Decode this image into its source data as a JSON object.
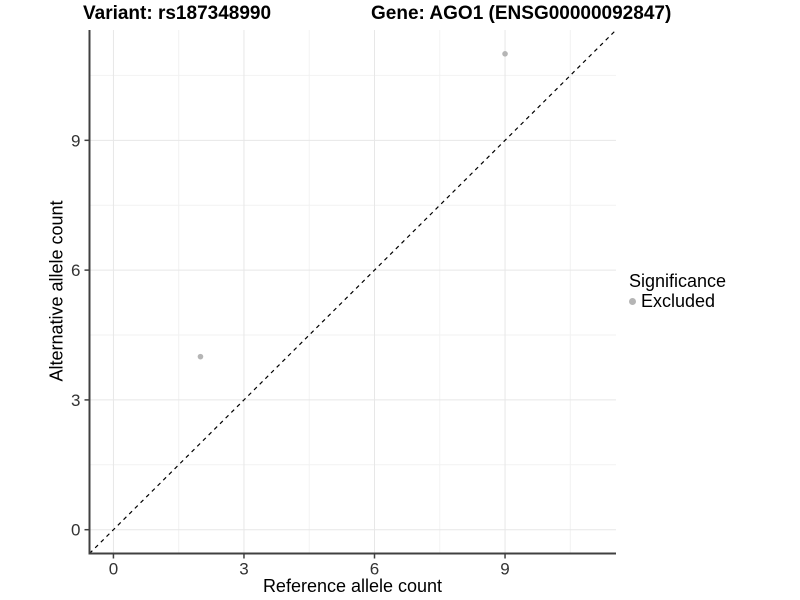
{
  "chart_data": {
    "type": "scatter",
    "title_left": "Variant: rs187348990",
    "title_right": "Gene: AGO1 (ENSG00000092847)",
    "xlabel": "Reference allele count",
    "ylabel": "Alternative allele count",
    "xlim": [
      -0.55,
      11.55
    ],
    "ylim": [
      -0.55,
      11.55
    ],
    "x_major_ticks": [
      0,
      3,
      6,
      9
    ],
    "x_minor_ticks": [
      1.5,
      4.5,
      7.5,
      10.5
    ],
    "y_major_ticks": [
      0,
      3,
      6,
      9
    ],
    "y_minor_ticks": [
      1.5,
      4.5,
      7.5,
      10.5
    ],
    "grid": "major and minor gridlines on white background",
    "identity_line": {
      "equation": "y = x",
      "style": "dashed",
      "color": "#000000"
    },
    "series": [
      {
        "name": "Excluded",
        "color": "#b5b5b5",
        "points": [
          {
            "x": 2,
            "y": 4
          },
          {
            "x": 9,
            "y": 11
          }
        ]
      }
    ],
    "legend": {
      "position": "right",
      "title": "Significance",
      "entries": [
        {
          "label": "Excluded",
          "color": "#b5b5b5"
        }
      ]
    }
  },
  "colors": {
    "background": "#ffffff",
    "axis_line": "#404040",
    "tick_label": "#333333",
    "grid_major": "#e7e7e7",
    "grid_minor": "#f2f2f2",
    "title_text": "#000000"
  }
}
